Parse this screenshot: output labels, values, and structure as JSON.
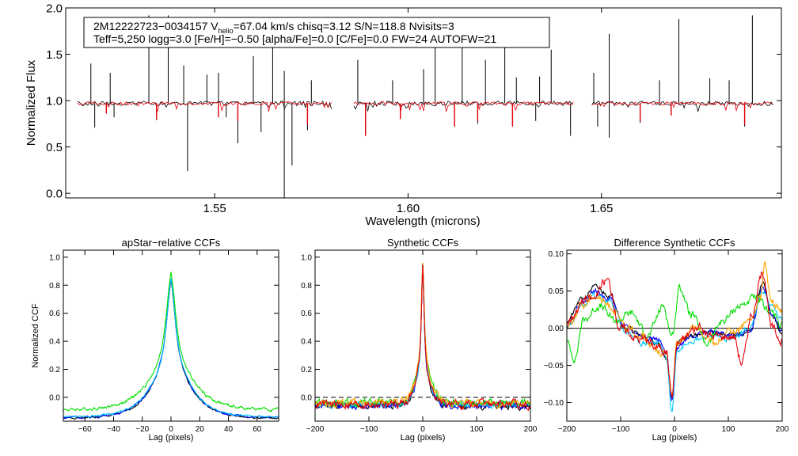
{
  "chart_data": [
    {
      "id": "spectrum",
      "type": "line",
      "title": "",
      "xlabel": "Wavelength (microns)",
      "ylabel": "Normalized Flux",
      "xlim": [
        1.5115,
        1.6965
      ],
      "ylim": [
        -0.05,
        2.0
      ],
      "xticks": [
        1.55,
        1.6,
        1.65
      ],
      "xtick_labels": [
        "1.55",
        "1.60",
        "1.65"
      ],
      "yticks": [
        0.0,
        0.5,
        1.0,
        1.5,
        2.0
      ],
      "ytick_labels": [
        "0.0",
        "0.5",
        "1.0",
        "1.5",
        "2.0"
      ],
      "chips": [
        [
          1.5145,
          1.5805
        ],
        [
          1.586,
          1.643
        ],
        [
          1.6475,
          1.6945
        ]
      ],
      "annotation": {
        "line1_prefix": "2M12222723−0034157  V",
        "line1_sub": "helio",
        "line1_suffix": "=67.04 km/s  chisq=3.12  S/N=118.8  Nvisits=3",
        "line2": "Teff=5,250 logg=3.0 [Fe/H]=−0.50 [alpha/Fe]=0.0 [C/Fe]=0.0 FW=24 AUTOFW=21"
      },
      "series": [
        {
          "name": "observed",
          "color": "#000000",
          "baseline": 0.97,
          "emission": [
            [
              1.518,
              1.4
            ],
            [
              1.523,
              1.3
            ],
            [
              1.533,
              1.92
            ],
            [
              1.538,
              1.92
            ],
            [
              1.542,
              1.38
            ],
            [
              1.548,
              1.28
            ],
            [
              1.551,
              1.3
            ],
            [
              1.56,
              1.48
            ],
            [
              1.565,
              1.86
            ],
            [
              1.568,
              1.32
            ],
            [
              1.575,
              1.22
            ],
            [
              1.587,
              1.44
            ],
            [
              1.596,
              1.22
            ],
            [
              1.604,
              1.34
            ],
            [
              1.607,
              1.74
            ],
            [
              1.614,
              1.9
            ],
            [
              1.62,
              1.44
            ],
            [
              1.625,
              1.66
            ],
            [
              1.628,
              1.25
            ],
            [
              1.634,
              1.26
            ],
            [
              1.637,
              1.55
            ],
            [
              1.648,
              1.3
            ],
            [
              1.652,
              1.72
            ],
            [
              1.665,
              1.22
            ],
            [
              1.67,
              1.88
            ],
            [
              1.678,
              1.24
            ],
            [
              1.683,
              1.22
            ],
            [
              1.689,
              1.92
            ]
          ],
          "absorption": [
            [
              1.519,
              0.71
            ],
            [
              1.524,
              0.82
            ],
            [
              1.535,
              0.79
            ],
            [
              1.543,
              0.24
            ],
            [
              1.553,
              0.82
            ],
            [
              1.556,
              0.54
            ],
            [
              1.562,
              0.66
            ],
            [
              1.568,
              -0.05
            ],
            [
              1.57,
              0.3
            ],
            [
              1.574,
              0.68
            ],
            [
              1.589,
              0.62
            ],
            [
              1.598,
              0.8
            ],
            [
              1.612,
              0.72
            ],
            [
              1.618,
              0.75
            ],
            [
              1.627,
              0.72
            ],
            [
              1.633,
              0.78
            ],
            [
              1.642,
              0.62
            ],
            [
              1.649,
              0.72
            ],
            [
              1.652,
              0.6
            ],
            [
              1.66,
              0.76
            ],
            [
              1.668,
              0.84
            ],
            [
              1.687,
              0.72
            ]
          ]
        },
        {
          "name": "model",
          "color": "#e8000b",
          "baseline": 0.97,
          "absorption": [
            [
              1.522,
              0.86
            ],
            [
              1.535,
              0.8
            ],
            [
              1.551,
              0.82
            ],
            [
              1.556,
              0.78
            ],
            [
              1.574,
              0.74
            ],
            [
              1.589,
              0.62
            ],
            [
              1.598,
              0.8
            ],
            [
              1.612,
              0.72
            ],
            [
              1.618,
              0.78
            ],
            [
              1.627,
              0.72
            ],
            [
              1.66,
              0.78
            ],
            [
              1.668,
              0.84
            ],
            [
              1.687,
              0.74
            ]
          ]
        }
      ]
    },
    {
      "id": "apstar",
      "type": "line",
      "title": "apStar−relative CCFs",
      "xlabel": "Lag (pixels)",
      "ylabel": "Normalized CCF",
      "xlim": [
        -75,
        75
      ],
      "ylim": [
        -0.17,
        1.05
      ],
      "xticks": [
        -60,
        -40,
        -20,
        0,
        20,
        40,
        60
      ],
      "xtick_labels": [
        "−60",
        "−40",
        "−20",
        "0",
        "20",
        "40",
        "60"
      ],
      "yticks": [
        0.0,
        0.2,
        0.4,
        0.6,
        0.8,
        1.0
      ],
      "ytick_labels": [
        "0.0",
        "0.2",
        "0.4",
        "0.6",
        "0.8",
        "1.0"
      ],
      "series": [
        {
          "name": "ccf-1",
          "color": "#000000",
          "amp": 0.72,
          "width": 12,
          "peak": 0.27,
          "pwidth": 2.6,
          "offset": -0.15,
          "wiggle": 0.012,
          "seed": 1
        },
        {
          "name": "ccf-2",
          "color": "#0000ff",
          "amp": 0.72,
          "width": 12,
          "peak": 0.27,
          "pwidth": 2.6,
          "offset": -0.145,
          "wiggle": 0.015,
          "seed": 2
        },
        {
          "name": "ccf-3",
          "color": "#00c8ff",
          "amp": 0.72,
          "width": 12,
          "peak": 0.27,
          "pwidth": 2.6,
          "offset": -0.14,
          "wiggle": 0.012,
          "seed": 3
        },
        {
          "name": "ccf-4",
          "color": "#00dd00",
          "amp": 0.7,
          "width": 13,
          "peak": 0.29,
          "pwidth": 2.7,
          "offset": -0.09,
          "wiggle": 0.02,
          "seed": 4
        }
      ]
    },
    {
      "id": "synthetic",
      "type": "line",
      "title": "Synthetic CCFs",
      "xlabel": "Lag (pixels)",
      "ylabel": "",
      "xlim": [
        -200,
        200
      ],
      "ylim": [
        -0.17,
        1.05
      ],
      "xticks": [
        -200,
        -100,
        0,
        100,
        200
      ],
      "xtick_labels": [
        "−200",
        "−100",
        "0",
        "100",
        "200"
      ],
      "yticks": [
        0.0,
        0.2,
        0.4,
        0.6,
        0.8,
        1.0
      ],
      "ytick_labels": [
        "0.0",
        "0.2",
        "0.4",
        "0.6",
        "0.8",
        "1.0"
      ],
      "zero_line": true,
      "series": [
        {
          "name": "ccf-1",
          "color": "#000000",
          "amp": 0.6,
          "width": 10,
          "peak": 0.4,
          "pwidth": 2.2,
          "offset": -0.06,
          "wiggle": 0.04,
          "seed": 11
        },
        {
          "name": "ccf-2",
          "color": "#0000ff",
          "amp": 0.6,
          "width": 10,
          "peak": 0.4,
          "pwidth": 2.2,
          "offset": -0.06,
          "wiggle": 0.04,
          "seed": 12
        },
        {
          "name": "ccf-3",
          "color": "#00c8ff",
          "amp": 0.6,
          "width": 10,
          "peak": 0.4,
          "pwidth": 2.2,
          "offset": -0.05,
          "wiggle": 0.04,
          "seed": 13
        },
        {
          "name": "ccf-4",
          "color": "#00dd00",
          "amp": 0.62,
          "width": 11,
          "peak": 0.38,
          "pwidth": 2.3,
          "offset": -0.04,
          "wiggle": 0.045,
          "seed": 14
        },
        {
          "name": "ccf-5",
          "color": "#ffa500",
          "amp": 0.62,
          "width": 11,
          "peak": 0.38,
          "pwidth": 2.3,
          "offset": -0.04,
          "wiggle": 0.045,
          "seed": 15
        },
        {
          "name": "ccf-6",
          "color": "#e8000b",
          "amp": 0.6,
          "width": 10,
          "peak": 0.4,
          "pwidth": 2.2,
          "offset": -0.05,
          "wiggle": 0.05,
          "seed": 16
        }
      ]
    },
    {
      "id": "difference",
      "type": "line",
      "title": "Difference Synthetic CCFs",
      "xlabel": "Lag (pixels)",
      "ylabel": "",
      "xlim": [
        -200,
        200
      ],
      "ylim": [
        -0.125,
        0.105
      ],
      "xticks": [
        -200,
        -100,
        0,
        100,
        200
      ],
      "xtick_labels": [
        "−200",
        "−100",
        "0",
        "100",
        "200"
      ],
      "yticks": [
        -0.1,
        -0.05,
        0.0,
        0.05,
        0.1
      ],
      "ytick_labels": [
        "−0.10",
        "−0.05",
        "0.00",
        "0.05",
        "0.10"
      ],
      "zero_line": true,
      "series": [
        {
          "name": "diff-1",
          "color": "#000000",
          "knots": [
            [
              -200,
              0.01
            ],
            [
              -170,
              0.04
            ],
            [
              -150,
              0.055
            ],
            [
              -120,
              0.045
            ],
            [
              -90,
              0.0
            ],
            [
              -60,
              -0.01
            ],
            [
              -30,
              -0.02
            ],
            [
              -15,
              -0.04
            ],
            [
              -5,
              -0.095
            ],
            [
              5,
              -0.02
            ],
            [
              30,
              -0.01
            ],
            [
              70,
              -0.005
            ],
            [
              110,
              -0.01
            ],
            [
              140,
              -0.005
            ],
            [
              165,
              0.06
            ],
            [
              180,
              0.02
            ],
            [
              200,
              -0.01
            ]
          ],
          "wiggle": 0.006,
          "seed": 21
        },
        {
          "name": "diff-2",
          "color": "#0000ff",
          "knots": [
            [
              -200,
              0.005
            ],
            [
              -170,
              0.035
            ],
            [
              -150,
              0.05
            ],
            [
              -120,
              0.04
            ],
            [
              -90,
              0.0
            ],
            [
              -60,
              -0.01
            ],
            [
              -30,
              -0.015
            ],
            [
              -15,
              -0.035
            ],
            [
              -5,
              -0.1
            ],
            [
              5,
              -0.025
            ],
            [
              30,
              -0.01
            ],
            [
              70,
              -0.005
            ],
            [
              110,
              -0.01
            ],
            [
              140,
              -0.003
            ],
            [
              165,
              0.055
            ],
            [
              180,
              0.02
            ],
            [
              200,
              -0.005
            ]
          ],
          "wiggle": 0.006,
          "seed": 22
        },
        {
          "name": "diff-3",
          "color": "#00c8ff",
          "knots": [
            [
              -200,
              0.0
            ],
            [
              -170,
              0.03
            ],
            [
              -150,
              0.045
            ],
            [
              -120,
              0.035
            ],
            [
              -90,
              -0.005
            ],
            [
              -60,
              -0.02
            ],
            [
              -30,
              -0.02
            ],
            [
              -15,
              -0.04
            ],
            [
              -5,
              -0.112
            ],
            [
              5,
              -0.03
            ],
            [
              30,
              -0.015
            ],
            [
              70,
              -0.01
            ],
            [
              110,
              -0.015
            ],
            [
              140,
              0.0
            ],
            [
              165,
              0.05
            ],
            [
              180,
              0.03
            ],
            [
              200,
              0.01
            ]
          ],
          "wiggle": 0.007,
          "seed": 23
        },
        {
          "name": "diff-4",
          "color": "#00dd00",
          "knots": [
            [
              -200,
              -0.02
            ],
            [
              -185,
              -0.04
            ],
            [
              -170,
              0.01
            ],
            [
              -140,
              0.03
            ],
            [
              -110,
              0.01
            ],
            [
              -80,
              0.02
            ],
            [
              -50,
              -0.01
            ],
            [
              -20,
              0.03
            ],
            [
              -5,
              -0.01
            ],
            [
              10,
              0.055
            ],
            [
              30,
              0.02
            ],
            [
              60,
              -0.02
            ],
            [
              90,
              0.01
            ],
            [
              120,
              0.03
            ],
            [
              150,
              0.04
            ],
            [
              175,
              0.025
            ],
            [
              200,
              0.005
            ]
          ],
          "wiggle": 0.01,
          "seed": 24
        },
        {
          "name": "diff-5",
          "color": "#ffa500",
          "knots": [
            [
              -200,
              0.005
            ],
            [
              -170,
              0.03
            ],
            [
              -150,
              0.045
            ],
            [
              -120,
              0.03
            ],
            [
              -90,
              0.0
            ],
            [
              -60,
              -0.01
            ],
            [
              -30,
              -0.03
            ],
            [
              -15,
              -0.035
            ],
            [
              -5,
              -0.09
            ],
            [
              5,
              -0.02
            ],
            [
              40,
              0.0
            ],
            [
              70,
              -0.02
            ],
            [
              110,
              -0.005
            ],
            [
              140,
              0.01
            ],
            [
              160,
              0.04
            ],
            [
              168,
              0.09
            ],
            [
              180,
              0.035
            ],
            [
              200,
              0.025
            ]
          ],
          "wiggle": 0.01,
          "seed": 25
        },
        {
          "name": "diff-6",
          "color": "#e8000b",
          "knots": [
            [
              -200,
              0.01
            ],
            [
              -170,
              0.035
            ],
            [
              -150,
              0.04
            ],
            [
              -125,
              0.065
            ],
            [
              -100,
              0.0
            ],
            [
              -60,
              -0.015
            ],
            [
              -30,
              -0.025
            ],
            [
              -15,
              -0.03
            ],
            [
              -5,
              -0.09
            ],
            [
              5,
              -0.02
            ],
            [
              40,
              0.0
            ],
            [
              70,
              -0.01
            ],
            [
              110,
              -0.01
            ],
            [
              125,
              -0.045
            ],
            [
              145,
              0.02
            ],
            [
              165,
              0.075
            ],
            [
              180,
              0.0
            ],
            [
              200,
              -0.015
            ]
          ],
          "wiggle": 0.012,
          "seed": 26
        }
      ]
    }
  ]
}
